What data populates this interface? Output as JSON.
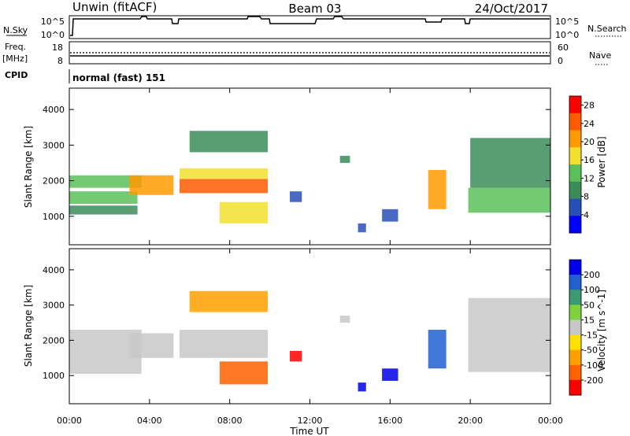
{
  "header": {
    "left": "Unwin (fitACF)",
    "center": "Beam 03",
    "right": "24/Oct/2017"
  },
  "panels": {
    "nsky": {
      "label": "N.Sky",
      "ticks_left": [
        "10^5",
        "10^0"
      ],
      "ticks_right": [
        "10^5",
        "10^0"
      ],
      "legend": "N.Search"
    },
    "freq": {
      "label": "Freq.",
      "unit": "[MHz]",
      "ticks_left": [
        "18",
        "8"
      ],
      "ticks_right": [
        "60",
        "0"
      ],
      "legend": "Nave"
    },
    "cpid": {
      "label": "CPID",
      "text": "normal (fast) 151"
    }
  },
  "colors": {
    "power_scale": [
      "#0000ff",
      "#2a4fb8",
      "#3c8c5a",
      "#5cc05a",
      "#f2e030",
      "#ff9a00",
      "#ff5a00",
      "#ff0000"
    ],
    "velocity_scale": [
      "#0000e8",
      "#2060d0",
      "#3c9a70",
      "#80d040",
      "#c8c8c8",
      "#ffe000",
      "#ffa000",
      "#ff6000",
      "#ff0000"
    ]
  },
  "chart_data": [
    {
      "type": "heatmap",
      "title": "",
      "xlabel": "",
      "ylabel": "Slant Range [km]",
      "xlim": [
        "00:00",
        "00:00"
      ],
      "ylim": [
        200,
        4600
      ],
      "x_ticks": [
        "00:00",
        "04:00",
        "08:00",
        "12:00",
        "16:00",
        "20:00",
        "00:00"
      ],
      "y_ticks": [
        1000,
        2000,
        3000,
        4000
      ],
      "colorbar": {
        "label": "Power [dB]",
        "ticks": [
          4,
          8,
          12,
          16,
          20,
          24,
          28
        ],
        "range": [
          0,
          30
        ]
      },
      "regions": [
        {
          "t": [
            0.0,
            3.4
          ],
          "r": [
            1050,
            1300
          ],
          "value": 8
        },
        {
          "t": [
            0.0,
            3.4
          ],
          "r": [
            1350,
            1700
          ],
          "value": 14
        },
        {
          "t": [
            0.0,
            3.6
          ],
          "r": [
            1800,
            2150
          ],
          "value": 12
        },
        {
          "t": [
            3.0,
            5.2
          ],
          "r": [
            1600,
            2150
          ],
          "value": 22
        },
        {
          "t": [
            5.5,
            9.9
          ],
          "r": [
            1650,
            2050
          ],
          "value": 26
        },
        {
          "t": [
            5.5,
            9.9
          ],
          "r": [
            2050,
            2350
          ],
          "value": 18
        },
        {
          "t": [
            6.0,
            9.9
          ],
          "r": [
            2800,
            3400
          ],
          "value": 10
        },
        {
          "t": [
            7.5,
            9.9
          ],
          "r": [
            800,
            1400
          ],
          "value": 16
        },
        {
          "t": [
            11.0,
            11.6
          ],
          "r": [
            1400,
            1700
          ],
          "value": 6
        },
        {
          "t": [
            13.5,
            14.0
          ],
          "r": [
            2500,
            2700
          ],
          "value": 8
        },
        {
          "t": [
            15.6,
            16.4
          ],
          "r": [
            850,
            1200
          ],
          "value": 4
        },
        {
          "t": [
            14.4,
            14.8
          ],
          "r": [
            550,
            800
          ],
          "value": 6
        },
        {
          "t": [
            17.9,
            18.8
          ],
          "r": [
            1200,
            2300
          ],
          "value": 20
        },
        {
          "t": [
            19.9,
            24.0
          ],
          "r": [
            1100,
            1800
          ],
          "value": 12
        },
        {
          "t": [
            20.0,
            24.0
          ],
          "r": [
            1800,
            3200
          ],
          "value": 10
        }
      ]
    },
    {
      "type": "heatmap",
      "title": "",
      "xlabel": "Time UT",
      "ylabel": "Slant Range [km]",
      "xlim": [
        "00:00",
        "00:00"
      ],
      "ylim": [
        200,
        4600
      ],
      "x_ticks": [
        "00:00",
        "04:00",
        "08:00",
        "12:00",
        "16:00",
        "20:00",
        "00:00"
      ],
      "y_ticks": [
        1000,
        2000,
        3000,
        4000
      ],
      "colorbar": {
        "label": "Velocity [m s^-1]",
        "ticks": [
          200,
          100,
          50,
          15,
          -15,
          -50,
          -100,
          -200
        ]
      },
      "regions": [
        {
          "t": [
            0.0,
            3.6
          ],
          "r": [
            1050,
            2300
          ],
          "value": 0
        },
        {
          "t": [
            3.0,
            5.2
          ],
          "r": [
            1500,
            2200
          ],
          "value": 0
        },
        {
          "t": [
            5.5,
            9.9
          ],
          "r": [
            1500,
            2300
          ],
          "value": 0
        },
        {
          "t": [
            6.0,
            9.9
          ],
          "r": [
            2800,
            3400
          ],
          "value": -60
        },
        {
          "t": [
            7.5,
            9.9
          ],
          "r": [
            750,
            1400
          ],
          "value": -150
        },
        {
          "t": [
            11.0,
            11.6
          ],
          "r": [
            1400,
            1700
          ],
          "value": -230
        },
        {
          "t": [
            13.5,
            14.0
          ],
          "r": [
            2500,
            2700
          ],
          "value": 0
        },
        {
          "t": [
            15.6,
            16.4
          ],
          "r": [
            850,
            1200
          ],
          "value": 220
        },
        {
          "t": [
            14.4,
            14.8
          ],
          "r": [
            550,
            800
          ],
          "value": 200
        },
        {
          "t": [
            17.9,
            18.8
          ],
          "r": [
            1200,
            2300
          ],
          "value": 180
        },
        {
          "t": [
            19.9,
            24.0
          ],
          "r": [
            1100,
            3200
          ],
          "value": 0
        }
      ]
    }
  ]
}
